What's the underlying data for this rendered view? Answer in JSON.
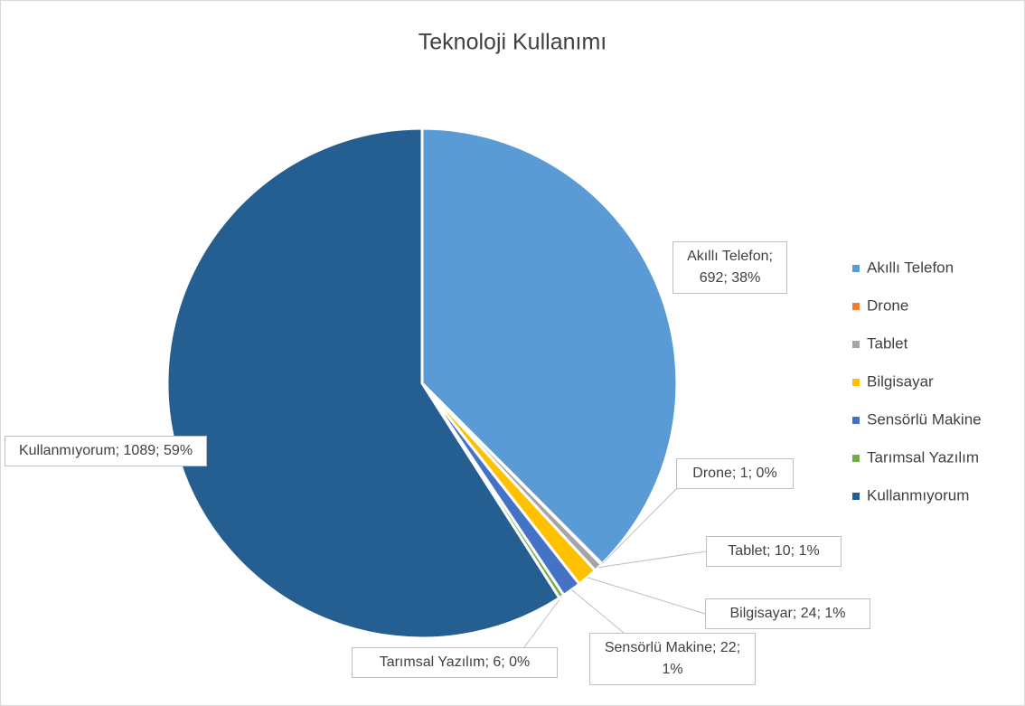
{
  "chart_data": {
    "type": "pie",
    "title": "Teknoloji Kullanımı",
    "categories": [
      "Akıllı Telefon",
      "Drone",
      "Tablet",
      "Bilgisayar",
      "Sensörlü Makine",
      "Tarımsal Yazılım",
      "Kullanmıyorum"
    ],
    "values": [
      692,
      1,
      10,
      24,
      22,
      6,
      1089
    ],
    "value_labels": [
      "Akıllı Telefon; 692; 38%",
      "Drone; 1; 0%",
      "Tablet; 10; 1%",
      "Bilgisayar; 24; 1%",
      "Sensörlü Makine; 22; 1%",
      "Tarımsal Yazılım; 6; 0%",
      "Kullanmıyorum; 1089; 59%"
    ],
    "colors": [
      "#5b9bd5",
      "#ed7d31",
      "#a5a5a5",
      "#ffc000",
      "#4472c4",
      "#70ad47",
      "#255e91"
    ],
    "legend": "right"
  }
}
